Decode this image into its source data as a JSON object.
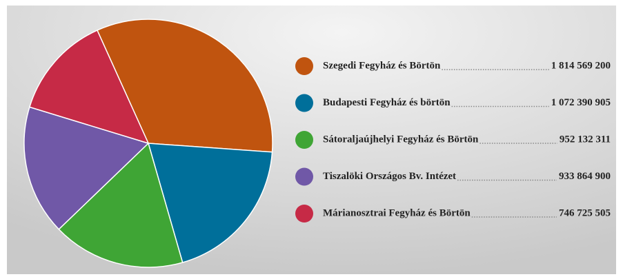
{
  "chart_data": {
    "type": "pie",
    "categories": [
      "Szegedi Fegyház és Börtön",
      "Budapesti Fegyház és börtön",
      "Sátoraljaújhelyi Fegyház és Börtön",
      "Tiszalöki Országos Bv. Intézet",
      "Márianosztrai Fegyház és Börtön"
    ],
    "values": [
      1814569200,
      1072390905,
      952132311,
      933864900,
      746725505
    ],
    "value_labels": [
      "1 814 569 200",
      "1 072 390 905",
      "952 132 311",
      "933 864 900",
      "746 725 505"
    ],
    "colors": [
      "#c0540f",
      "#006f9a",
      "#3fa535",
      "#7058a7",
      "#c62a46"
    ]
  }
}
